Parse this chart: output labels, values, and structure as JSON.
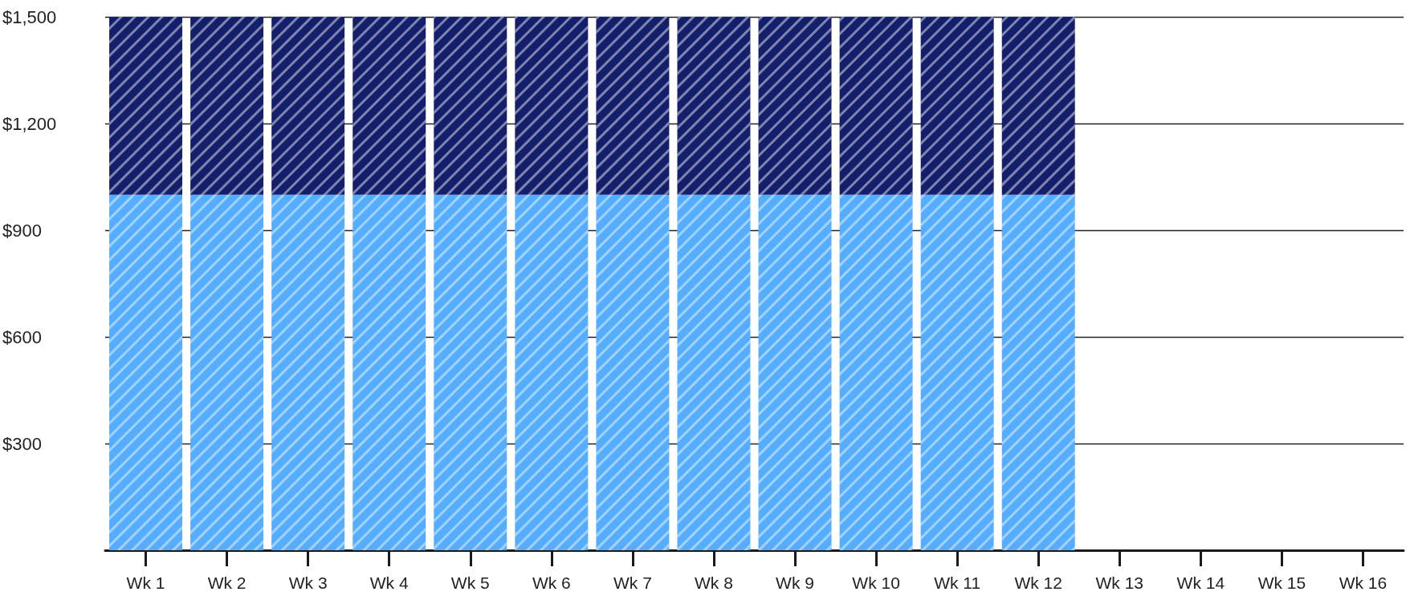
{
  "chart_data": {
    "type": "bar",
    "stacked": true,
    "categories": [
      "Wk 1",
      "Wk 2",
      "Wk 3",
      "Wk 4",
      "Wk 5",
      "Wk 6",
      "Wk 7",
      "Wk 8",
      "Wk 9",
      "Wk 10",
      "Wk 11",
      "Wk 12",
      "Wk 13",
      "Wk 14",
      "Wk 15",
      "Wk 16"
    ],
    "series": [
      {
        "color": "#55adff",
        "values": [
          1000,
          1000,
          1000,
          1000,
          1000,
          1000,
          1000,
          1000,
          1000,
          1000,
          1000,
          1000,
          null,
          null,
          null,
          null
        ]
      },
      {
        "color": "#141f6b",
        "values": [
          500,
          500,
          500,
          500,
          500,
          500,
          500,
          500,
          500,
          500,
          500,
          500,
          null,
          null,
          null,
          null
        ]
      }
    ],
    "ylim": [
      0,
      1500
    ],
    "yticks": [
      {
        "value": 300,
        "label": "$300"
      },
      {
        "value": 600,
        "label": "$600"
      },
      {
        "value": 900,
        "label": "$900"
      },
      {
        "value": 1200,
        "label": "$1,200"
      },
      {
        "value": 1500,
        "label": "$1,500"
      }
    ],
    "grid": "y"
  }
}
